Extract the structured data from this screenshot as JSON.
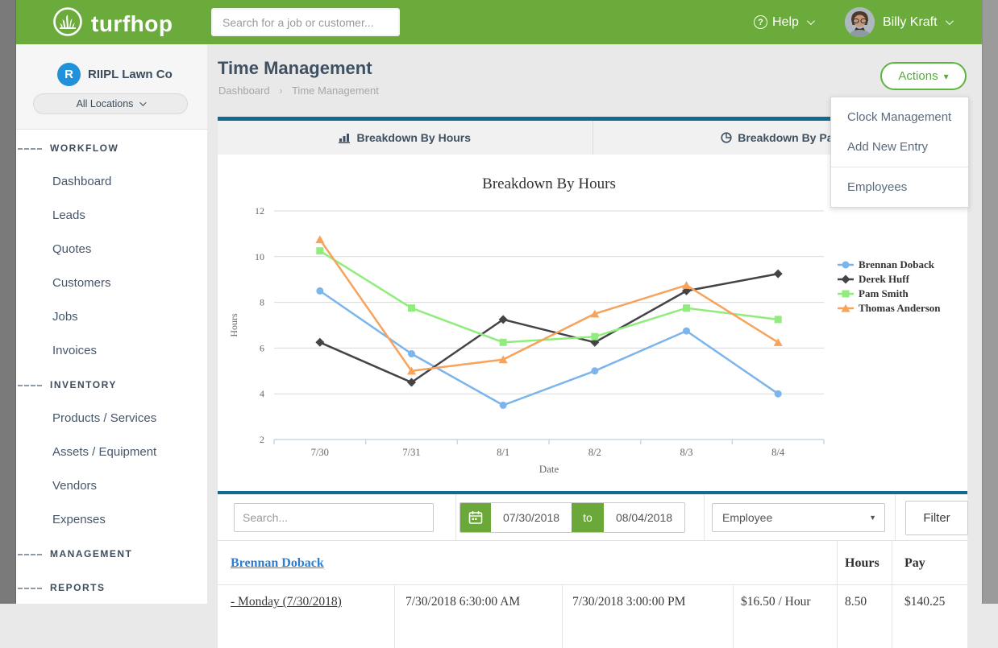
{
  "navbar": {
    "brand": "turfhop",
    "search_placeholder": "Search for a job or customer...",
    "help_label": "Help",
    "user_name": "Billy Kraft"
  },
  "sidebar": {
    "company_initial": "R",
    "company_name": "RIIPL Lawn Co",
    "location_filter": "All Locations",
    "sections": [
      {
        "label": "WORKFLOW",
        "items": [
          "Dashboard",
          "Leads",
          "Quotes",
          "Customers",
          "Jobs",
          "Invoices"
        ]
      },
      {
        "label": "INVENTORY",
        "items": [
          "Products / Services",
          "Assets / Equipment",
          "Vendors",
          "Expenses"
        ]
      },
      {
        "label": "MANAGEMENT",
        "items": []
      },
      {
        "label": "REPORTS",
        "items": []
      }
    ]
  },
  "page": {
    "title": "Time Management",
    "breadcrumb": [
      "Dashboard",
      "Time Management"
    ],
    "actions_label": "Actions"
  },
  "actions_menu": {
    "items": [
      "Clock Management",
      "Add New Entry",
      "Employees"
    ],
    "divider_before_index": 2
  },
  "tabs": [
    {
      "label": "Breakdown By Hours",
      "icon": "bar-chart-icon",
      "active": true
    },
    {
      "label": "Breakdown By Pay",
      "icon": "pie-chart-icon",
      "active": false
    }
  ],
  "chart_data": {
    "type": "line",
    "title": "Breakdown By Hours",
    "xlabel": "Date",
    "ylabel": "Hours",
    "categories": [
      "7/30",
      "7/31",
      "8/1",
      "8/2",
      "8/3",
      "8/4"
    ],
    "ylim": [
      2,
      12
    ],
    "yticks": [
      2,
      4,
      6,
      8,
      10,
      12
    ],
    "grid": true,
    "legend_position": "right",
    "series": [
      {
        "name": "Brennan Doback",
        "color": "#7cb5ec",
        "marker": "circle",
        "values": [
          8.5,
          5.75,
          3.5,
          5,
          6.75,
          4
        ]
      },
      {
        "name": "Derek Huff",
        "color": "#434348",
        "marker": "diamond",
        "values": [
          6.25,
          4.5,
          7.25,
          6.25,
          8.5,
          9.25
        ]
      },
      {
        "name": "Pam Smith",
        "color": "#90ed7d",
        "marker": "square",
        "values": [
          10.25,
          7.75,
          6.25,
          6.5,
          7.75,
          7.25
        ]
      },
      {
        "name": "Thomas Anderson",
        "color": "#f7a35c",
        "marker": "triangle",
        "values": [
          10.75,
          5,
          5.5,
          7.5,
          8.75,
          6.25
        ]
      }
    ]
  },
  "filter_bar": {
    "search_placeholder": "Search...",
    "date_from": "07/30/2018",
    "to_label": "to",
    "date_to": "08/04/2018",
    "employee_select": "Employee",
    "filter_button": "Filter"
  },
  "table": {
    "group_header": "Brennan Doback",
    "columns": {
      "hours": "Hours",
      "pay": "Pay"
    },
    "rows": [
      {
        "day": "- Monday (7/30/2018)",
        "clock_in": "7/30/2018 6:30:00 AM",
        "clock_out": "7/30/2018 3:00:00 PM",
        "rate": "$16.50 / Hour",
        "hours": "8.50",
        "pay": "$140.25"
      }
    ]
  },
  "icons": {
    "help": "?",
    "caret_down": "▾",
    "select_caret": "▼",
    "breadcrumb_separator": "›"
  },
  "colors": {
    "brand_green": "#6aab3c",
    "button_green": "#5cb53c",
    "accent_teal": "#116b90",
    "link_blue": "#2d7dd2",
    "company_badge_blue": "#2191d9"
  }
}
